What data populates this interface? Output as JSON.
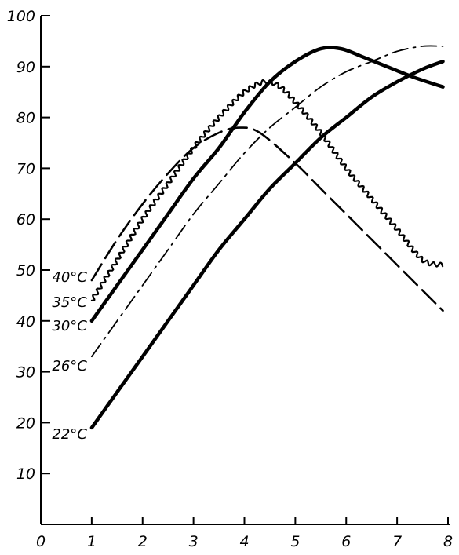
{
  "chart_data": {
    "type": "line",
    "title": "",
    "xlabel": "",
    "ylabel": "",
    "xlim": [
      0,
      8
    ],
    "ylim": [
      0,
      100
    ],
    "x_ticks": [
      "0",
      "1",
      "2",
      "3",
      "4",
      "5",
      "6",
      "7",
      "8"
    ],
    "y_ticks": [
      "10",
      "20",
      "30",
      "40",
      "50",
      "60",
      "70",
      "80",
      "90",
      "100"
    ],
    "grid": false,
    "legend": "inline-left",
    "series": [
      {
        "name": "40°C",
        "style": "dashed",
        "x": [
          1,
          1.5,
          2,
          2.5,
          3,
          3.5,
          3.9,
          4.3,
          5,
          5.5,
          6,
          6.5,
          7,
          7.5,
          7.9
        ],
        "y": [
          48,
          56,
          63,
          69,
          74,
          77,
          78,
          77,
          71,
          66,
          61,
          56,
          51,
          46,
          42
        ]
      },
      {
        "name": "35°C",
        "style": "wavy",
        "x": [
          1,
          1.5,
          2,
          2.5,
          3,
          3.5,
          4,
          4.4,
          4.7,
          5,
          5.5,
          6,
          6.5,
          7,
          7.5,
          7.9
        ],
        "y": [
          44,
          52,
          60,
          67,
          74,
          80,
          85,
          87,
          86,
          83,
          77,
          70,
          64,
          58,
          52,
          51
        ]
      },
      {
        "name": "30°C",
        "style": "thick-solid",
        "x": [
          1,
          1.5,
          2,
          2.5,
          3,
          3.5,
          4,
          4.5,
          5,
          5.5,
          5.9,
          6.3,
          6.8,
          7.3,
          7.9
        ],
        "y": [
          40,
          47,
          54,
          61,
          68,
          74,
          81,
          87,
          91,
          93.5,
          93.5,
          92,
          90,
          88,
          86
        ]
      },
      {
        "name": "26°C",
        "style": "dash-dot",
        "x": [
          1,
          1.5,
          2,
          2.5,
          3,
          3.5,
          4,
          4.5,
          5,
          5.5,
          6,
          6.5,
          7,
          7.5,
          7.9
        ],
        "y": [
          33,
          40,
          47,
          54,
          61,
          67,
          73,
          78,
          82,
          86,
          89,
          91,
          93,
          94,
          94
        ]
      },
      {
        "name": "22°C",
        "style": "thick-solid",
        "x": [
          1,
          1.5,
          2,
          2.5,
          3,
          3.5,
          4,
          4.5,
          5,
          5.5,
          6,
          6.5,
          7,
          7.5,
          7.9
        ],
        "y": [
          19,
          26,
          33,
          40,
          47,
          54,
          60,
          66,
          71,
          76,
          80,
          84,
          87,
          89.5,
          91
        ]
      }
    ]
  }
}
